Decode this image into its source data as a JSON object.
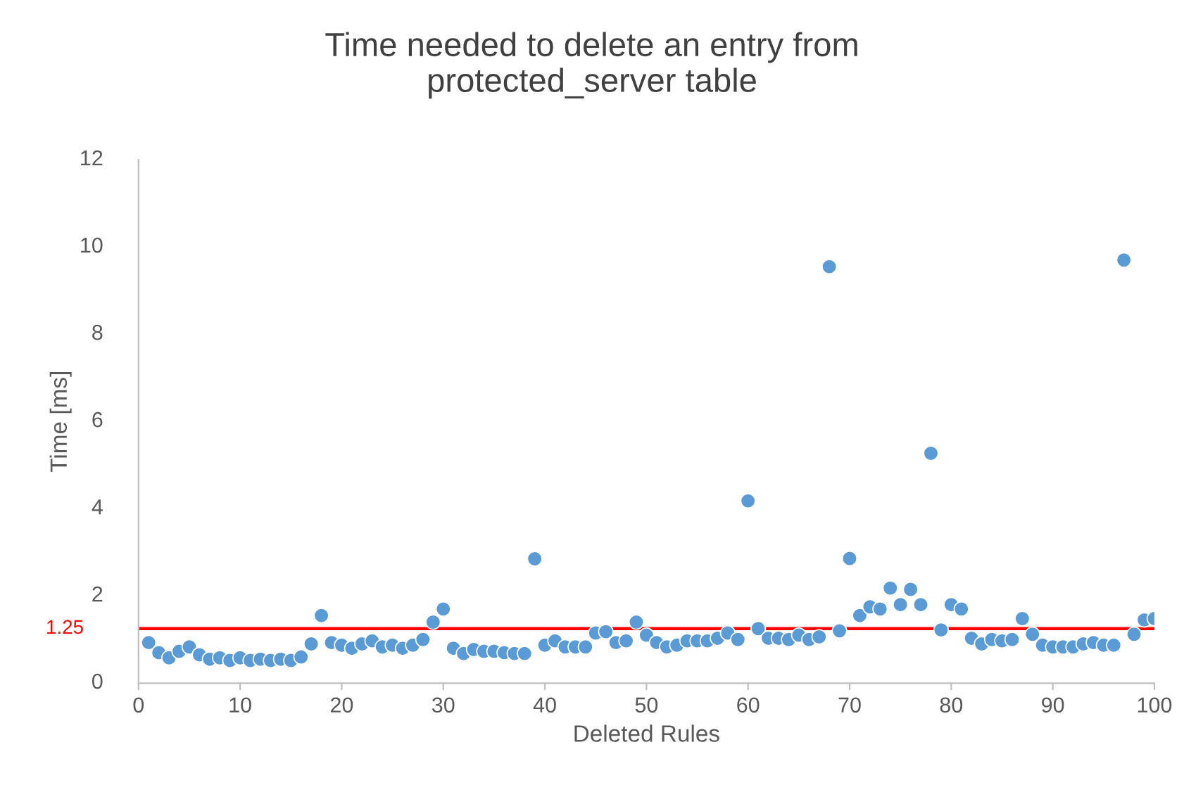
{
  "chart_data": {
    "type": "scatter",
    "title": "Time needed to delete an entry from\nprotected_server table",
    "xlabel": "Deleted Rules",
    "ylabel": "Time [ms]",
    "x": [
      1,
      2,
      3,
      4,
      5,
      6,
      7,
      8,
      9,
      10,
      11,
      12,
      13,
      14,
      15,
      16,
      17,
      18,
      19,
      20,
      21,
      22,
      23,
      24,
      25,
      26,
      27,
      28,
      29,
      30,
      31,
      32,
      33,
      34,
      35,
      36,
      37,
      38,
      39,
      40,
      41,
      42,
      43,
      44,
      45,
      46,
      47,
      48,
      49,
      50,
      51,
      52,
      53,
      54,
      55,
      56,
      57,
      58,
      59,
      60,
      61,
      62,
      63,
      64,
      65,
      66,
      67,
      68,
      69,
      70,
      71,
      72,
      73,
      74,
      75,
      76,
      77,
      78,
      79,
      80,
      81,
      82,
      83,
      84,
      85,
      86,
      87,
      88,
      89,
      90,
      91,
      92,
      93,
      94,
      95,
      96,
      97,
      98,
      99,
      100
    ],
    "values": [
      0.93,
      0.7,
      0.58,
      0.73,
      0.83,
      0.65,
      0.55,
      0.58,
      0.52,
      0.58,
      0.52,
      0.55,
      0.52,
      0.55,
      0.52,
      0.6,
      0.9,
      1.55,
      0.93,
      0.87,
      0.8,
      0.9,
      0.97,
      0.83,
      0.87,
      0.8,
      0.87,
      1.0,
      1.4,
      1.7,
      0.8,
      0.68,
      0.77,
      0.73,
      0.73,
      0.7,
      0.68,
      0.68,
      2.85,
      0.87,
      0.97,
      0.83,
      0.83,
      0.83,
      1.15,
      1.18,
      0.93,
      0.97,
      1.4,
      1.1,
      0.93,
      0.83,
      0.87,
      0.97,
      0.97,
      0.97,
      1.03,
      1.15,
      1.0,
      4.18,
      1.25,
      1.03,
      1.03,
      1.0,
      1.1,
      1.0,
      1.06,
      9.55,
      1.2,
      2.86,
      1.55,
      1.75,
      1.7,
      2.18,
      1.8,
      2.15,
      1.8,
      5.27,
      1.22,
      1.8,
      1.7,
      1.03,
      0.9,
      1.0,
      0.97,
      1.0,
      1.48,
      1.12,
      0.87,
      0.83,
      0.83,
      0.83,
      0.9,
      0.93,
      0.87,
      0.87,
      9.7,
      1.12,
      1.45,
      1.48
    ],
    "color": "#5b9bd5",
    "marker": "circle",
    "xlim": [
      0,
      100
    ],
    "xticks": [
      0,
      10,
      20,
      30,
      40,
      50,
      60,
      70,
      80,
      90,
      100
    ],
    "ylim": [
      0,
      12
    ],
    "yticks": [
      0,
      2,
      4,
      6,
      8,
      10,
      12
    ],
    "ref_lines": [
      {
        "axis": "y",
        "value": 1.25,
        "label": "1.25",
        "color": "#ff0000"
      }
    ],
    "grid": false
  }
}
